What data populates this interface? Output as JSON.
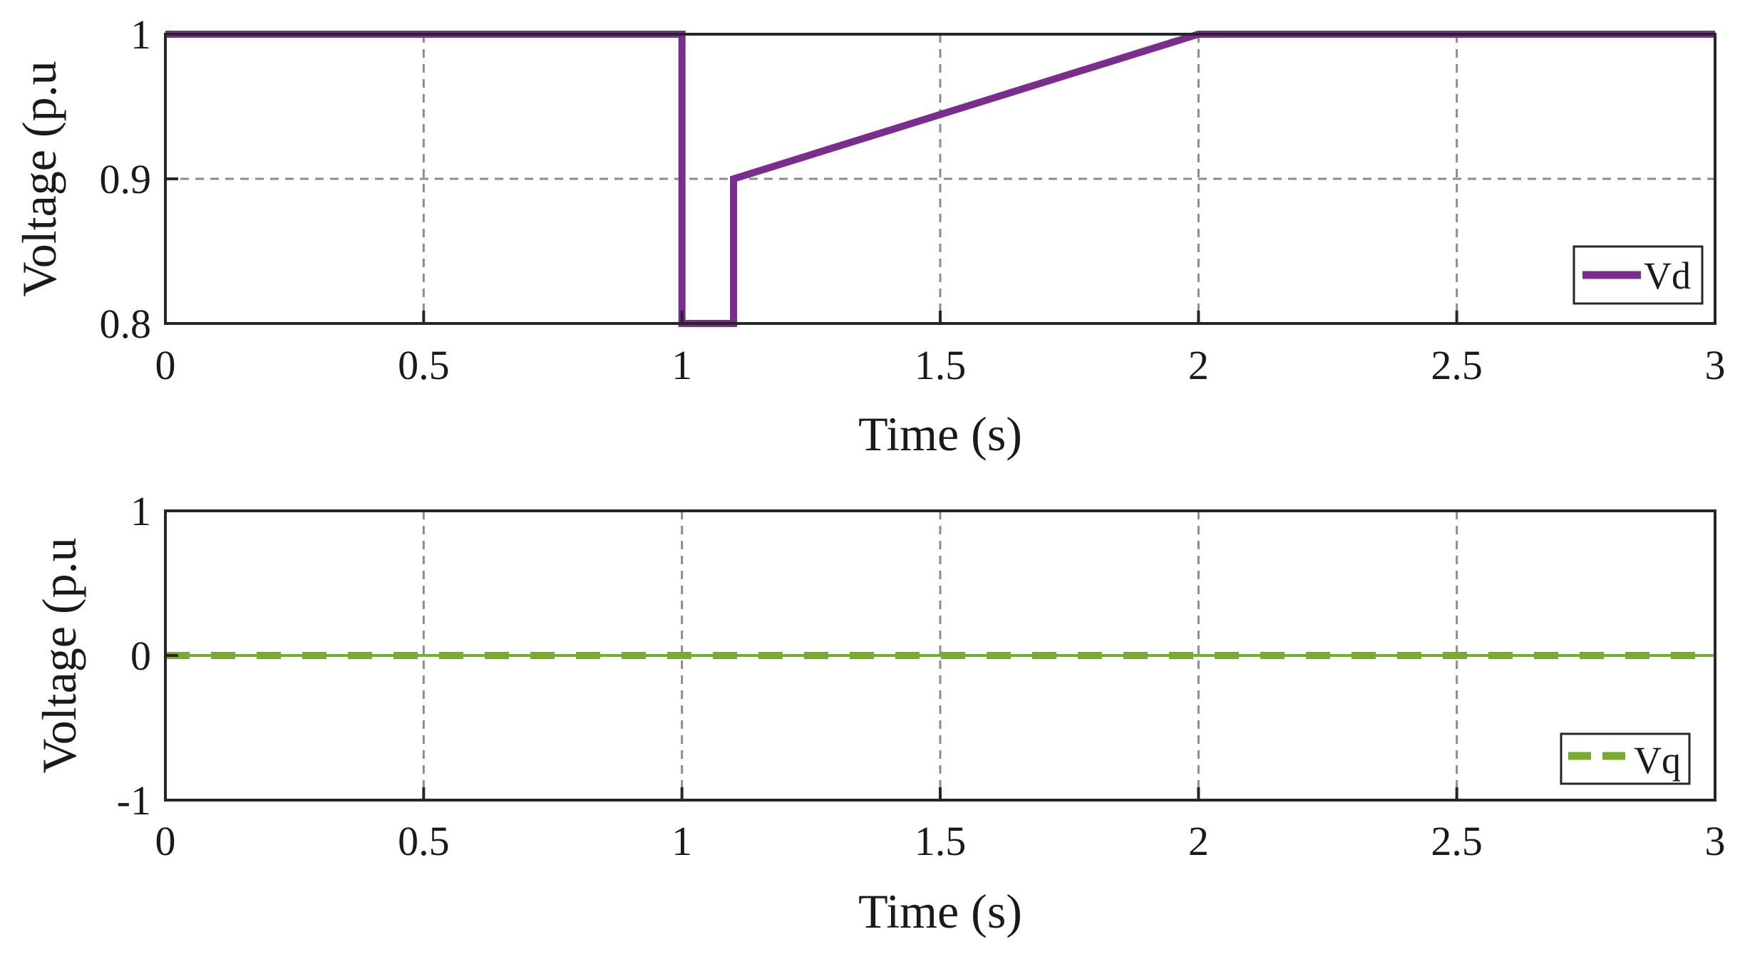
{
  "chart_data": [
    {
      "type": "line",
      "id": "vd",
      "xlabel": "Time (s)",
      "ylabel": "Voltage (p.u",
      "xlim": [
        0,
        3
      ],
      "ylim": [
        0.8,
        1
      ],
      "xticks": [
        0,
        0.5,
        1,
        1.5,
        2,
        2.5,
        3
      ],
      "xtick_labels": [
        "0",
        "0.5",
        "1",
        "1.5",
        "2",
        "2.5",
        "3"
      ],
      "yticks": [
        0.8,
        0.9,
        1
      ],
      "ytick_labels": [
        "0.8",
        "0.9",
        "1"
      ],
      "grid": true,
      "legend_position": "bottom-right",
      "series": [
        {
          "name": "Vd",
          "color": "#7b2d8e",
          "line_style": "solid",
          "x": [
            0,
            1.0,
            1.0,
            1.1,
            1.1,
            2.0,
            3.0
          ],
          "y": [
            1.0,
            1.0,
            0.8,
            0.8,
            0.9,
            1.0,
            1.0
          ]
        }
      ]
    },
    {
      "type": "line",
      "id": "vq",
      "xlabel": "Time (s)",
      "ylabel": "Voltage (p.u",
      "xlim": [
        0,
        3
      ],
      "ylim": [
        -1,
        1
      ],
      "xticks": [
        0,
        0.5,
        1,
        1.5,
        2,
        2.5,
        3
      ],
      "xtick_labels": [
        "0",
        "0.5",
        "1",
        "1.5",
        "2",
        "2.5",
        "3"
      ],
      "yticks": [
        -1,
        0,
        1
      ],
      "ytick_labels": [
        "-1",
        "0",
        "1"
      ],
      "grid": true,
      "legend_position": "bottom-right",
      "series": [
        {
          "name": "Vq",
          "color": "#77ac30",
          "line_style": "dashed",
          "x": [
            0,
            3
          ],
          "y": [
            0,
            0
          ]
        }
      ]
    }
  ]
}
